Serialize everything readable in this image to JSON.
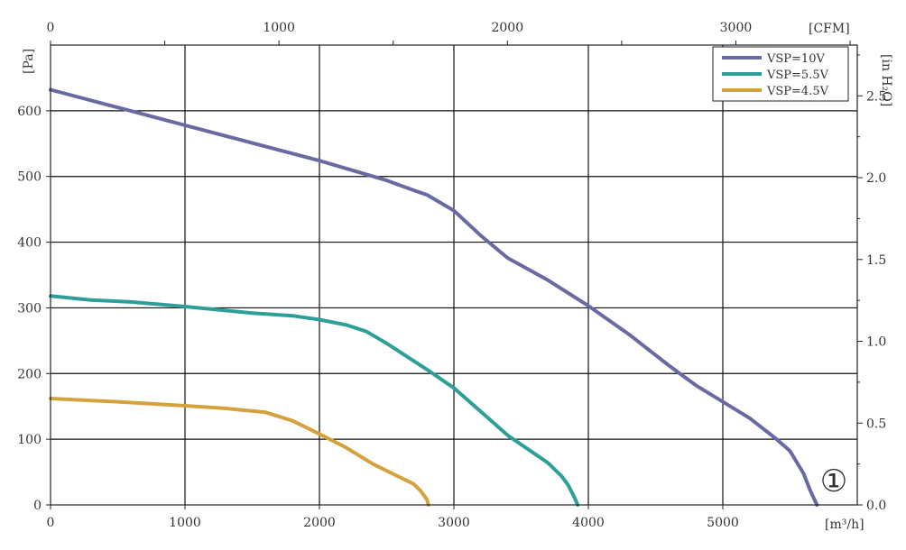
{
  "chart_data": {
    "type": "line",
    "x_unit_label": "[m³/h]",
    "x_top_unit_label": "[CFM]",
    "y_unit_label": "[Pa]",
    "y_right_unit_label": "[in H₂O]",
    "curve_marker": "①",
    "xlim": [
      0,
      6000
    ],
    "ylim": [
      0,
      700
    ],
    "x_ticks": [
      0,
      1000,
      2000,
      3000,
      4000,
      5000
    ],
    "y_ticks": [
      0,
      100,
      200,
      300,
      400,
      500,
      600
    ],
    "x_top_ticks": [
      0,
      1000,
      2000,
      3000
    ],
    "y_right_ticks": [
      0.0,
      0.5,
      1.0,
      1.5,
      2.0,
      2.5
    ],
    "grid": true,
    "legend_position": "top-right",
    "series": [
      {
        "name": "VSP=10V",
        "color": "#6a6aa3",
        "points": [
          [
            0,
            632
          ],
          [
            500,
            605
          ],
          [
            1000,
            578
          ],
          [
            1500,
            551
          ],
          [
            2000,
            524
          ],
          [
            2500,
            494
          ],
          [
            2700,
            479
          ],
          [
            2800,
            472
          ],
          [
            3000,
            448
          ],
          [
            3200,
            410
          ],
          [
            3400,
            376
          ],
          [
            3700,
            342
          ],
          [
            4000,
            303
          ],
          [
            4300,
            260
          ],
          [
            4600,
            212
          ],
          [
            4800,
            182
          ],
          [
            5000,
            157
          ],
          [
            5200,
            132
          ],
          [
            5400,
            100
          ],
          [
            5500,
            82
          ],
          [
            5600,
            48
          ],
          [
            5650,
            22
          ],
          [
            5700,
            0
          ]
        ]
      },
      {
        "name": "VSP=5.5V",
        "color": "#2e9e98",
        "points": [
          [
            0,
            318
          ],
          [
            300,
            312
          ],
          [
            600,
            309
          ],
          [
            1000,
            302
          ],
          [
            1500,
            292
          ],
          [
            1800,
            288
          ],
          [
            2000,
            282
          ],
          [
            2200,
            274
          ],
          [
            2350,
            264
          ],
          [
            2500,
            246
          ],
          [
            2800,
            206
          ],
          [
            3000,
            178
          ],
          [
            3200,
            142
          ],
          [
            3400,
            106
          ],
          [
            3600,
            78
          ],
          [
            3700,
            64
          ],
          [
            3800,
            44
          ],
          [
            3850,
            30
          ],
          [
            3900,
            10
          ],
          [
            3920,
            0
          ]
        ]
      },
      {
        "name": "VSP=4.5V",
        "color": "#d4a23c",
        "points": [
          [
            0,
            162
          ],
          [
            500,
            157
          ],
          [
            1000,
            151
          ],
          [
            1300,
            147
          ],
          [
            1600,
            141
          ],
          [
            1800,
            128
          ],
          [
            2000,
            108
          ],
          [
            2200,
            87
          ],
          [
            2400,
            62
          ],
          [
            2600,
            42
          ],
          [
            2700,
            32
          ],
          [
            2750,
            22
          ],
          [
            2800,
            8
          ],
          [
            2810,
            0
          ]
        ]
      }
    ]
  }
}
